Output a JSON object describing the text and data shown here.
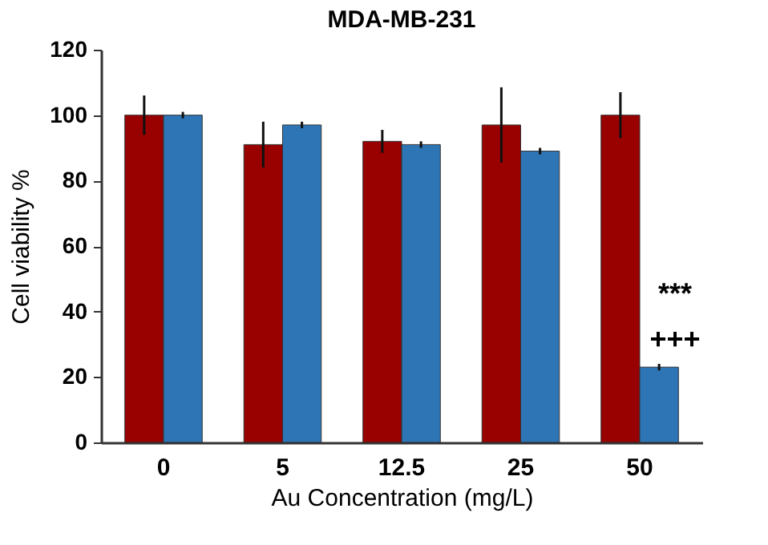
{
  "chart_data": {
    "type": "bar",
    "title": "MDA-MB-231",
    "xlabel": "Au Concentration (mg/L)",
    "ylabel": "Cell viability %",
    "categories": [
      "0",
      "5",
      "12.5",
      "25",
      "50"
    ],
    "series": [
      {
        "color": "#990000",
        "values": [
          100,
          91,
          92,
          97,
          100
        ],
        "errors": [
          6,
          7,
          3.5,
          11.5,
          7
        ]
      },
      {
        "color": "#2e75b6",
        "values": [
          100,
          97,
          91,
          89,
          23
        ],
        "errors": [
          1,
          1,
          1,
          1,
          1
        ]
      }
    ],
    "ylim": [
      0,
      120
    ],
    "yticks": [
      0,
      20,
      40,
      60,
      80,
      100,
      120
    ],
    "grid": false,
    "annotations": [
      {
        "text": "***",
        "x": "50",
        "y": 45
      },
      {
        "text": "+++",
        "x": "50",
        "y": 31
      }
    ]
  }
}
